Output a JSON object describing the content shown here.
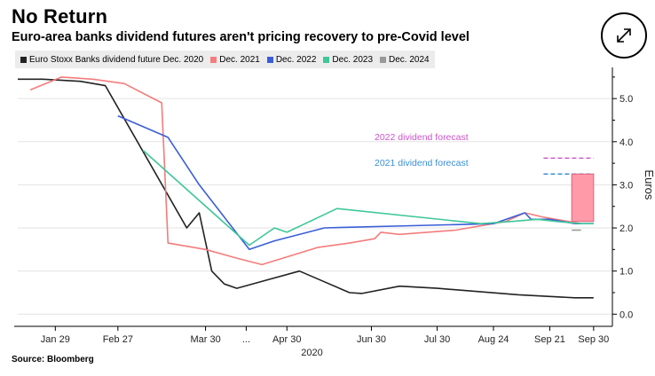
{
  "title": "No Return",
  "subtitle": "Euro-area banks dividend futures aren't pricing recovery to pre-Covid level",
  "source": "Source: Bloomberg",
  "expand_icon": "expand-arrows-icon",
  "chart_data": {
    "type": "line",
    "title": "No Return",
    "subtitle": "Euro-area banks dividend futures aren't pricing recovery to pre-Covid level",
    "xlabel": "2020",
    "ylabel": "Euros",
    "ylim": [
      -0.2,
      5.6
    ],
    "yticks": [
      0.0,
      1.0,
      2.0,
      3.0,
      4.0,
      5.0
    ],
    "ytick_labels": [
      "0.0",
      "1.0",
      "2.0",
      "3.0",
      "4.0",
      "5.0"
    ],
    "x_unit": "index (day-scale, Jan 29 = 6)",
    "xlim": [
      0,
      95
    ],
    "xticks": [
      {
        "x": 6,
        "label": "Jan 29"
      },
      {
        "x": 16,
        "label": "Feb 27"
      },
      {
        "x": 30,
        "label": "Mar 30"
      },
      {
        "x": 36.5,
        "label": "..."
      },
      {
        "x": 43,
        "label": "Apr 30"
      },
      {
        "x": 56.5,
        "label": "Jun 30"
      },
      {
        "x": 67,
        "label": "Jul 30"
      },
      {
        "x": 76,
        "label": "Aug 24"
      },
      {
        "x": 85,
        "label": "Sep 21"
      },
      {
        "x": 92,
        "label": "Sep 30"
      }
    ],
    "legend_position": "top-left",
    "series": [
      {
        "name": "Euro Stoxx Banks dividend future Dec. 2020",
        "color": "#222222",
        "points": [
          [
            0,
            5.45
          ],
          [
            4,
            5.45
          ],
          [
            10,
            5.4
          ],
          [
            14,
            5.3
          ],
          [
            27,
            2.0
          ],
          [
            29,
            2.35
          ],
          [
            31,
            1.0
          ],
          [
            33,
            0.7
          ],
          [
            35,
            0.6
          ],
          [
            40,
            0.8
          ],
          [
            45,
            1.0
          ],
          [
            49,
            0.75
          ],
          [
            53,
            0.5
          ],
          [
            55,
            0.48
          ],
          [
            61,
            0.65
          ],
          [
            67,
            0.6
          ],
          [
            80,
            0.45
          ],
          [
            89,
            0.38
          ],
          [
            92,
            0.38
          ]
        ]
      },
      {
        "name": "Dec. 2021",
        "color": "#f47c7c",
        "points": [
          [
            2,
            5.2
          ],
          [
            7,
            5.5
          ],
          [
            12,
            5.45
          ],
          [
            17,
            5.35
          ],
          [
            23,
            4.9
          ],
          [
            24,
            1.65
          ],
          [
            30,
            1.5
          ],
          [
            35,
            1.3
          ],
          [
            39,
            1.15
          ],
          [
            48,
            1.55
          ],
          [
            53,
            1.65
          ],
          [
            57,
            1.75
          ],
          [
            58,
            1.9
          ],
          [
            61,
            1.85
          ],
          [
            70,
            1.95
          ],
          [
            78,
            2.15
          ],
          [
            81,
            2.35
          ],
          [
            84,
            2.25
          ],
          [
            90,
            2.1
          ]
        ]
      },
      {
        "name": "Dec. 2022",
        "color": "#3a5ed8",
        "points": [
          [
            16,
            4.6
          ],
          [
            24,
            4.1
          ],
          [
            29,
            3.0
          ],
          [
            37,
            1.5
          ],
          [
            41,
            1.7
          ],
          [
            49,
            2.0
          ],
          [
            76,
            2.1
          ],
          [
            81,
            2.35
          ],
          [
            82,
            2.2
          ],
          [
            85,
            2.2
          ],
          [
            89,
            2.1
          ],
          [
            92,
            2.1
          ]
        ]
      },
      {
        "name": "Dec. 2023",
        "color": "#3fc79a",
        "points": [
          [
            20,
            3.8
          ],
          [
            37,
            1.6
          ],
          [
            41,
            2.0
          ],
          [
            43,
            1.9
          ],
          [
            51,
            2.45
          ],
          [
            74,
            2.1
          ],
          [
            79,
            2.15
          ],
          [
            83,
            2.2
          ],
          [
            86,
            2.15
          ],
          [
            90,
            2.1
          ],
          [
            92,
            2.1
          ]
        ]
      },
      {
        "name": "Dec. 2024",
        "color": "#999999",
        "points": [
          [
            88.5,
            1.95
          ],
          [
            90,
            1.95
          ]
        ]
      }
    ],
    "annotations": [
      {
        "text": "2022 dividend forecast",
        "color": "#cc55cc",
        "y": 3.62,
        "x_text": 57,
        "x_line_start": 84,
        "x_line_end": 92
      },
      {
        "text": "2021 dividend forecast",
        "color": "#3b8fd6",
        "y": 3.25,
        "x_text": 57,
        "x_line_start": 84,
        "x_line_end": 92
      },
      {
        "text": "",
        "type": "gap-bar",
        "color": "#ff9aa8",
        "y_low": 2.15,
        "y_high": 3.25,
        "x_start": 88.5,
        "x_end": 92
      }
    ]
  }
}
